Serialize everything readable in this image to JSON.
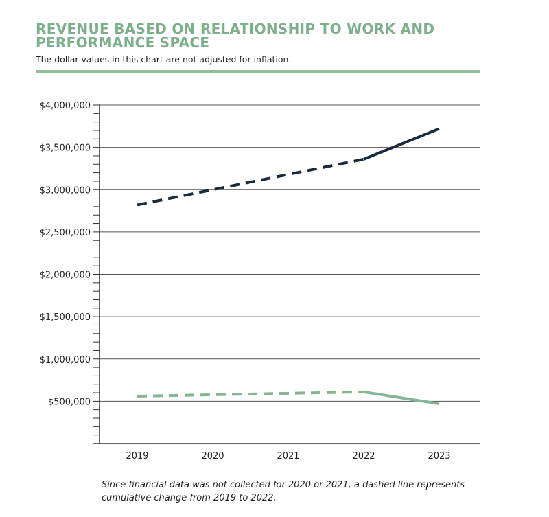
{
  "header": {
    "title": "REVENUE BASED ON RELATIONSHIP TO WORK AND PERFORMANCE SPACE",
    "subtitle": "The dollar values in this chart are not adjusted for inflation."
  },
  "footnote": "Since financial data was not collected for 2020 or 2021, a dashed line represents cumulative change from 2019 to 2022.",
  "chart_data": {
    "type": "line",
    "title": "REVENUE BASED ON RELATIONSHIP TO WORK AND PERFORMANCE SPACE",
    "subtitle": "The dollar values in this chart are not adjusted for inflation.",
    "categories": [
      "2019",
      "2020",
      "2021",
      "2022",
      "2023"
    ],
    "ylim": [
      0,
      4000000
    ],
    "ytick_values": [
      500000,
      1000000,
      1500000,
      2000000,
      2500000,
      3000000,
      3500000,
      4000000
    ],
    "ytick_labels": [
      "$500,000",
      "$1,000,000",
      "$1,500,000",
      "$2,000,000",
      "$2,500,000",
      "$3,000,000",
      "$3,500,000",
      "$4,000,000"
    ],
    "grid": true,
    "legend": "none",
    "series": [
      {
        "color": "#1b2a3a",
        "points": [
          {
            "x": "2019",
            "y": 2820000
          },
          {
            "x": "2022",
            "y": 3360000
          },
          {
            "x": "2023",
            "y": 3720000
          }
        ],
        "dashed_segment": [
          "2019",
          "2022"
        ]
      },
      {
        "color": "#86b592",
        "points": [
          {
            "x": "2019",
            "y": 560000
          },
          {
            "x": "2022",
            "y": 610000
          },
          {
            "x": "2023",
            "y": 470000
          }
        ],
        "dashed_segment": [
          "2019",
          "2022"
        ]
      }
    ]
  }
}
